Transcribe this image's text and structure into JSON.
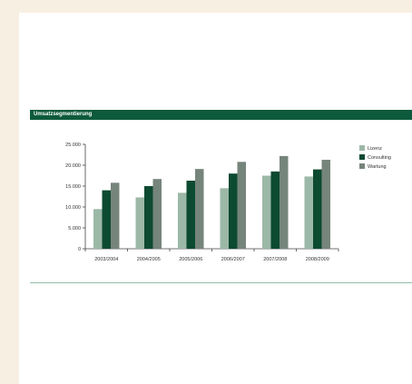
{
  "header": {
    "title": "Umsatzsegmentierung"
  },
  "colors": {
    "band": "#0d5a3c",
    "band_text": "#ffffff",
    "rule": "#8fbfa6",
    "axis": "#444444"
  },
  "chart_data": {
    "type": "bar",
    "title": "Umsatzsegmentierung",
    "categories": [
      "2003/2004",
      "2004/2005",
      "2005/2006",
      "2006/2007",
      "2007/2008",
      "2008/2009"
    ],
    "series": [
      {
        "name": "Lizenz",
        "color": "#9cb8a7",
        "values": [
          9500,
          12300,
          13400,
          14500,
          17500,
          17300
        ]
      },
      {
        "name": "Consulting",
        "color": "#0d4a32",
        "values": [
          14000,
          15000,
          16300,
          18000,
          18500,
          19000
        ]
      },
      {
        "name": "Wartung",
        "color": "#76857c",
        "values": [
          15800,
          16700,
          19100,
          20800,
          22200,
          21300
        ]
      }
    ],
    "yticks": [
      "25.000",
      "20.000",
      "15.000",
      "10.000",
      "5.000",
      "0"
    ],
    "ylim": [
      0,
      25000
    ],
    "legend_position": "right",
    "grid": false
  }
}
